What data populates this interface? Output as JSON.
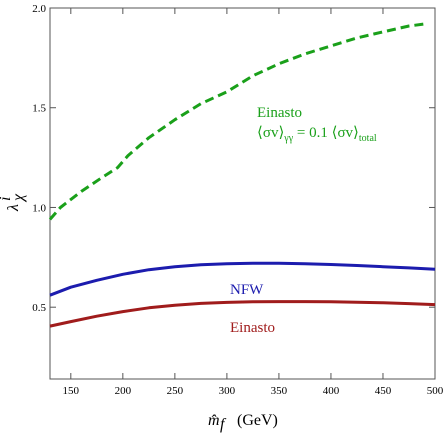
{
  "chart_data": {
    "type": "line",
    "xlabel_var": "m̂",
    "xlabel_sub": "f",
    "xlabel_unit": "(GeV)",
    "ylabel_var": "λ",
    "ylabel_sup": "i",
    "ylabel_sub": "χ",
    "xlim": [
      130,
      500
    ],
    "ylim": [
      0.14,
      2.0
    ],
    "x_ticks": [
      150,
      200,
      250,
      300,
      350,
      400,
      450,
      500
    ],
    "x_tick_labels": [
      "150",
      "200",
      "250",
      "300",
      "350",
      "400",
      "450",
      "500"
    ],
    "y_ticks": [
      0.5,
      1.0,
      1.5,
      2.0
    ],
    "y_tick_labels": [
      "0.5",
      "1.0",
      "1.5",
      "2.0"
    ],
    "series": [
      {
        "name": "Einasto",
        "annotation_line2": "⟨σv⟩γγ = 0.1 ⟨σv⟩total",
        "color": "#1aa01a",
        "style": "dashed",
        "x": [
          130,
          140,
          160,
          180,
          195,
          205,
          225,
          250,
          275,
          300,
          325,
          350,
          375,
          400,
          425,
          450,
          475,
          490
        ],
        "y": [
          0.94,
          1.0,
          1.08,
          1.15,
          1.2,
          1.26,
          1.35,
          1.44,
          1.52,
          1.58,
          1.66,
          1.72,
          1.77,
          1.81,
          1.85,
          1.88,
          1.91,
          1.92
        ]
      },
      {
        "name": "NFW",
        "color": "#1c1cae",
        "style": "solid",
        "x": [
          130,
          150,
          175,
          200,
          225,
          250,
          275,
          300,
          325,
          350,
          375,
          400,
          425,
          450,
          475,
          500
        ],
        "y": [
          0.56,
          0.6,
          0.635,
          0.665,
          0.688,
          0.703,
          0.713,
          0.718,
          0.72,
          0.72,
          0.718,
          0.714,
          0.709,
          0.703,
          0.697,
          0.69
        ]
      },
      {
        "name": "Einasto",
        "color": "#a01c1c",
        "style": "solid",
        "x": [
          130,
          150,
          175,
          200,
          225,
          250,
          275,
          300,
          325,
          350,
          375,
          400,
          425,
          450,
          475,
          500
        ],
        "y": [
          0.405,
          0.428,
          0.455,
          0.478,
          0.497,
          0.51,
          0.519,
          0.524,
          0.527,
          0.528,
          0.528,
          0.527,
          0.525,
          0.522,
          0.518,
          0.513
        ]
      }
    ]
  }
}
